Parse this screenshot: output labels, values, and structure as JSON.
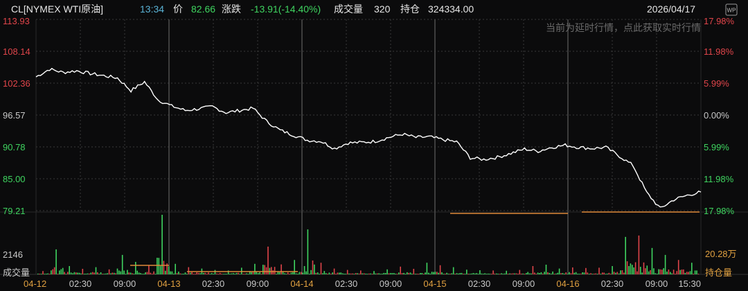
{
  "header": {
    "symbol": "CL[NYMEX WTI原油]",
    "time": "13:34",
    "price_label": "价",
    "price": "82.66",
    "change_label": "涨跌",
    "change": "-13.91(-14.40%)",
    "volume_label": "成交量",
    "volume": "320",
    "oi_label": "持仓",
    "oi": "324334.00",
    "date": "2026/04/17",
    "badge": "WP"
  },
  "notice": "当前为延时行情，点此获取实时行情",
  "colors": {
    "background": "#0b0b0c",
    "price_line": "#ffffff",
    "up": "#e0454a",
    "down": "#3fd460",
    "neutral": "#c8c8c8",
    "grid": "#3a3a3a",
    "oi_line": "#e08a3a",
    "date_label": "#e0a040"
  },
  "chart_data": {
    "type": "line",
    "y_left_labels": [
      "113.93",
      "108.14",
      "102.36",
      "96.57",
      "90.78",
      "85.00",
      "79.21"
    ],
    "y_right_labels": [
      "17.98%",
      "11.98%",
      "5.99%",
      "0.00%",
      "5.99%",
      "11.98%",
      "17.98%"
    ],
    "ylim": [
      79.21,
      113.93
    ],
    "volume_left_label": "2146",
    "volume_axis_label": "成交量",
    "oi_axis_label": "持仓量",
    "oi_right_label": "20.28万",
    "x_ticks": [
      "04-12",
      "02:30",
      "09:00",
      "04-13",
      "02:30",
      "09:00",
      "04-14",
      "02:30",
      "09:00",
      "04-15",
      "02:30",
      "09:00",
      "04-16",
      "02:30",
      "09:00",
      "15:30"
    ],
    "x_tick_is_date": [
      true,
      false,
      false,
      true,
      false,
      false,
      true,
      false,
      false,
      true,
      false,
      false,
      true,
      false,
      false,
      false
    ],
    "series": [
      {
        "values": [
          103.5,
          104.9,
          104.3,
          104.6,
          104.1,
          103.7,
          103.3,
          101.0,
          102.6,
          99.3,
          98.2,
          97.4,
          97.7,
          98.1,
          97.0,
          97.4,
          97.8,
          95.4,
          93.8,
          92.9,
          92.0,
          91.8,
          90.5,
          91.5,
          91.6,
          91.8,
          92.5,
          93.1,
          92.5,
          92.6,
          92.1,
          91.7,
          88.8,
          88.5,
          88.9,
          89.6,
          90.4,
          90.0,
          90.7,
          91.1,
          90.7,
          90.5,
          90.7,
          89.1,
          87.4,
          82.5,
          79.6,
          81.2,
          82.0,
          82.6
        ]
      }
    ],
    "volume": [
      120,
      900,
      300,
      200,
      260,
      180,
      700,
      450,
      340,
      2146,
      380,
      260,
      210,
      160,
      140,
      240,
      380,
      1000,
      360,
      520,
      1620,
      420,
      210,
      160,
      140,
      120,
      180,
      280,
      200,
      420,
      330,
      260,
      170,
      150,
      140,
      130,
      160,
      300,
      350,
      210,
      250,
      230,
      240,
      300,
      1350,
      1400,
      950,
      700,
      520,
      420
    ]
  }
}
